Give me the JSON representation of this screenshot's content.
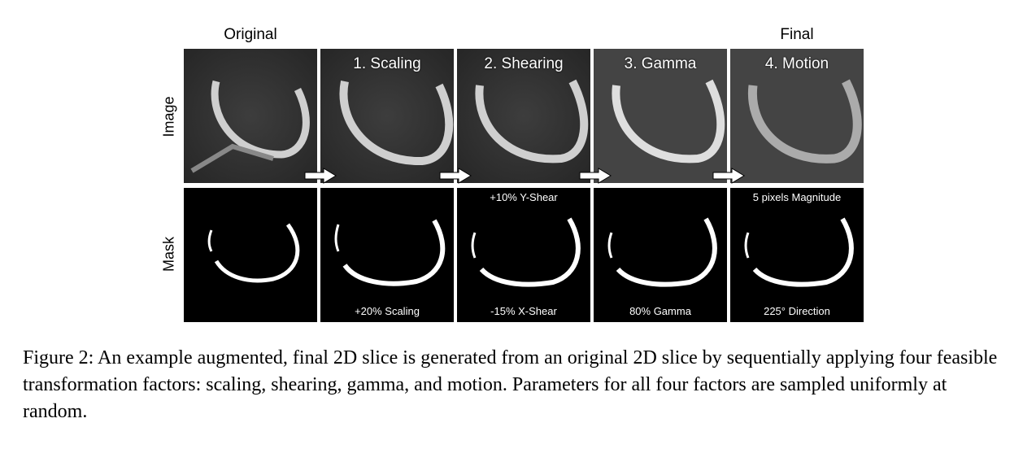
{
  "headers": {
    "original": "Original",
    "final": "Final"
  },
  "row_labels": {
    "image": "Image",
    "mask": "Mask"
  },
  "steps": [
    {
      "label": "",
      "param_top": "",
      "param_bottom": ""
    },
    {
      "label": "1. Scaling",
      "param_top": "",
      "param_bottom": "+20% Scaling"
    },
    {
      "label": "2. Shearing",
      "param_top": "+10% Y-Shear",
      "param_bottom": "-15% X-Shear"
    },
    {
      "label": "3. Gamma",
      "param_top": "",
      "param_bottom": "80% Gamma"
    },
    {
      "label": "4. Motion",
      "param_top": "5 pixels Magnitude",
      "param_bottom": "225° Direction"
    }
  ],
  "caption": "Figure 2: An example augmented, final 2D slice is generated from an original 2D slice by sequentially applying four feasible transformation factors: scaling, shearing, gamma, and motion. Parameters for all four factors are sampled uniformly at random.",
  "colors": {
    "mask_bg": "#000000",
    "mask_fg": "#ffffff",
    "image_bg": "#3a3a3a",
    "cartilage": "#cfcfcf"
  }
}
